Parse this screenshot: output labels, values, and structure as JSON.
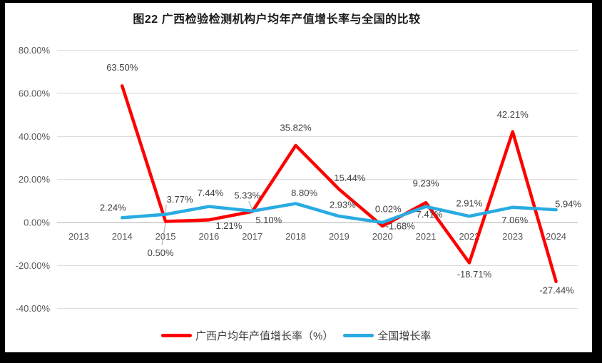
{
  "title": "图22 广西检验检测机构户均年产值增长率与全国的比较",
  "colors": {
    "guangxi_line": "#FF0000",
    "national_line": "#29ABE2",
    "gridline": "#D9D9D9",
    "zero_axis": "#BFBFBF",
    "tick_text": "#595959",
    "data_label_text": "#3F3F3F",
    "leader_line": "#A6A6A6",
    "frame": "#000000",
    "background": "#FFFFFF"
  },
  "legend": {
    "items": [
      {
        "label": "广西户均年产值增长率（%）",
        "color": "#FF0000"
      },
      {
        "label": "全国增长率",
        "color": "#29ABE2"
      }
    ]
  },
  "chart_data": {
    "type": "line",
    "title": "图22 广西检验检测机构户均年产值增长率与全国的比较",
    "categories": [
      "2013",
      "2014",
      "2015",
      "2016",
      "2017",
      "2018",
      "2019",
      "2020",
      "2021",
      "2022",
      "2023",
      "2024"
    ],
    "ylim": [
      -40,
      80
    ],
    "grid": true,
    "legend_position": "bottom",
    "yticks": [
      {
        "value": 80,
        "label": "80.00%"
      },
      {
        "value": 60,
        "label": "60.00%"
      },
      {
        "value": 40,
        "label": "40.00%"
      },
      {
        "value": 20,
        "label": "20.00%"
      },
      {
        "value": 0,
        "label": "0.00%"
      },
      {
        "value": -20,
        "label": "-20.00%"
      },
      {
        "value": -40,
        "label": "-40.00%"
      }
    ],
    "series": [
      {
        "id": "guangxi",
        "name": "广西户均年产值增长率（%）",
        "color": "#FF0000",
        "points": [
          {
            "x": "2014",
            "value": 63.5,
            "label": "63.50%",
            "label_offset": [
              0,
              -26
            ]
          },
          {
            "x": "2015",
            "value": 0.5,
            "label": "0.50%",
            "label_offset": [
              -7,
              44
            ],
            "leader": {
              "from": [
                0,
                2
              ],
              "to": [
                -5,
                33
              ]
            }
          },
          {
            "x": "2016",
            "value": 1.21,
            "label": "1.21%",
            "label_offset": [
              28,
              8
            ]
          },
          {
            "x": "2017",
            "value": 5.1,
            "label": "5.10%",
            "label_offset": [
              23,
              12
            ]
          },
          {
            "x": "2018",
            "value": 35.82,
            "label": "35.82%",
            "label_offset": [
              0,
              -25
            ]
          },
          {
            "x": "2019",
            "value": 15.44,
            "label": "15.44%",
            "label_offset": [
              15,
              -16
            ]
          },
          {
            "x": "2020",
            "value": -1.68,
            "label": "-1.68%",
            "label_offset": [
              25,
              0
            ]
          },
          {
            "x": "2021",
            "value": 9.23,
            "label": "9.23%",
            "label_offset": [
              0,
              -27
            ]
          },
          {
            "x": "2022",
            "value": -18.71,
            "label": "-18.71%",
            "label_offset": [
              7,
              16
            ]
          },
          {
            "x": "2023",
            "value": 42.21,
            "label": "42.21%",
            "label_offset": [
              0,
              -24
            ]
          },
          {
            "x": "2024",
            "value": -27.44,
            "label": "-27.44%",
            "label_offset": [
              1,
              12
            ]
          }
        ]
      },
      {
        "id": "national",
        "name": "全国增长率",
        "color": "#29ABE2",
        "points": [
          {
            "x": "2014",
            "value": 2.24,
            "label": "2.24%",
            "label_offset": [
              -13,
              -14
            ]
          },
          {
            "x": "2015",
            "value": 3.77,
            "label": "3.77%",
            "label_offset": [
              20,
              -21
            ],
            "leader": {
              "from": [
                0,
                -2
              ],
              "to": [
                1,
                -13
              ]
            }
          },
          {
            "x": "2016",
            "value": 7.44,
            "label": "7.44%",
            "label_offset": [
              2,
              -19
            ]
          },
          {
            "x": "2017",
            "value": 5.33,
            "label": "5.33%",
            "label_offset": [
              -7,
              -22
            ],
            "leader": {
              "from": [
                0,
                -2
              ],
              "to": [
                -5,
                -14
              ]
            }
          },
          {
            "x": "2018",
            "value": 8.8,
            "label": "8.80%",
            "label_offset": [
              12,
              -15
            ]
          },
          {
            "x": "2019",
            "value": 2.93,
            "label": "2.93%",
            "label_offset": [
              5,
              -16
            ]
          },
          {
            "x": "2020",
            "value": 0.02,
            "label": "0.02%",
            "label_offset": [
              8,
              -19
            ]
          },
          {
            "x": "2021",
            "value": 7.41,
            "label": "7.41%",
            "label_offset": [
              5,
              11
            ]
          },
          {
            "x": "2022",
            "value": 2.91,
            "label": "2.91%",
            "label_offset": [
              0,
              -18
            ]
          },
          {
            "x": "2023",
            "value": 7.06,
            "label": "7.06%",
            "label_offset": [
              3,
              18
            ]
          },
          {
            "x": "2024",
            "value": 5.94,
            "label": "5.94%",
            "label_offset": [
              17,
              -8
            ]
          }
        ]
      }
    ]
  }
}
